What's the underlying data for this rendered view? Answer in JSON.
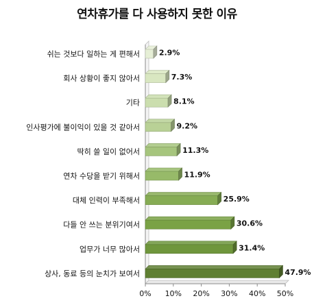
{
  "chart_data": {
    "type": "bar",
    "orientation": "horizontal",
    "title": "연차휴가를 다 사용하지 못한 이유",
    "categories": [
      "쉬는 것보다 일하는 게 편해서",
      "회사 상황이 좋지 않아서",
      "기타",
      "인사평가에 불이익이 있을 것 같아서",
      "딱히 쓸 일이 없어서",
      "연차 수당을 받기 위해서",
      "대체 인력이 부족해서",
      "다들 안 쓰는 분위기여서",
      "업무가 너무 많아서",
      "상사, 동료 등의 눈치가 보여서"
    ],
    "values": [
      2.9,
      7.3,
      8.1,
      9.2,
      11.3,
      11.9,
      25.9,
      30.6,
      31.4,
      47.9
    ],
    "value_labels": [
      "2.9%",
      "7.3%",
      "8.1%",
      "9.2%",
      "11.3%",
      "11.9%",
      "25.9%",
      "30.6%",
      "31.4%",
      "47.9%"
    ],
    "xlim": [
      0,
      50
    ],
    "x_ticks": [
      "0%",
      "10%",
      "20%",
      "30%",
      "40%",
      "50%"
    ],
    "grid": false,
    "legend": "none",
    "bar_colors": [
      "#e6efd6",
      "#d9e7c1",
      "#cbdeae",
      "#b9d196",
      "#a6c57d",
      "#97ba69",
      "#86ac54",
      "#7aa245",
      "#6f963c",
      "#5f7f32"
    ]
  }
}
